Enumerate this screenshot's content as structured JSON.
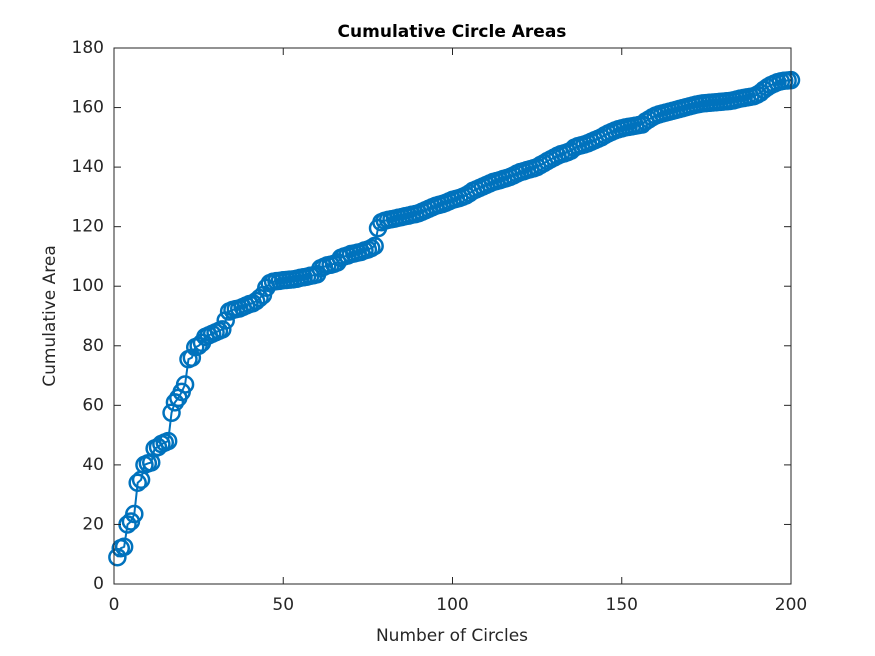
{
  "chart_data": {
    "type": "line",
    "title": "Cumulative Circle Areas",
    "x_label": "Number of Circles",
    "y_label": "Cumulative Area",
    "x": [
      1,
      2,
      3,
      4,
      5,
      6,
      7,
      8,
      9,
      10,
      11,
      12,
      13,
      14,
      15,
      16,
      17,
      18,
      19,
      20,
      21,
      22,
      23,
      24,
      25,
      26,
      27,
      28,
      29,
      30,
      31,
      32,
      33,
      34,
      35,
      36,
      37,
      38,
      39,
      40,
      41,
      42,
      43,
      44,
      45,
      46,
      47,
      48,
      49,
      50,
      51,
      52,
      53,
      54,
      55,
      56,
      57,
      58,
      59,
      60,
      61,
      62,
      63,
      64,
      65,
      66,
      67,
      68,
      69,
      70,
      71,
      72,
      73,
      74,
      75,
      76,
      77,
      78,
      79,
      80,
      81,
      82,
      83,
      84,
      85,
      86,
      87,
      88,
      89,
      90,
      91,
      92,
      93,
      94,
      95,
      96,
      97,
      98,
      99,
      100,
      101,
      102,
      103,
      104,
      105,
      106,
      107,
      108,
      109,
      110,
      111,
      112,
      113,
      114,
      115,
      116,
      117,
      118,
      119,
      120,
      121,
      122,
      123,
      124,
      125,
      126,
      127,
      128,
      129,
      130,
      131,
      132,
      133,
      134,
      135,
      136,
      137,
      138,
      139,
      140,
      141,
      142,
      143,
      144,
      145,
      146,
      147,
      148,
      149,
      150,
      151,
      152,
      153,
      154,
      155,
      156,
      157,
      158,
      159,
      160,
      161,
      162,
      163,
      164,
      165,
      166,
      167,
      168,
      169,
      170,
      171,
      172,
      173,
      174,
      175,
      176,
      177,
      178,
      179,
      180,
      181,
      182,
      183,
      184,
      185,
      186,
      187,
      188,
      189,
      190,
      191,
      192,
      193,
      194,
      195,
      196,
      197,
      198,
      199,
      200
    ],
    "series": [
      {
        "color": "#0072bd",
        "values": [
          9,
          12,
          12.5,
          20,
          21,
          23.5,
          34,
          35,
          40,
          40.5,
          40.8,
          45.5,
          46,
          47,
          47.5,
          48,
          57.5,
          61,
          62.5,
          64.5,
          67,
          75.5,
          76,
          79.5,
          80,
          81,
          83,
          83.5,
          84,
          84.5,
          85,
          85.5,
          88.5,
          91.5,
          92,
          92.3,
          92.5,
          93,
          93.5,
          94,
          94.3,
          95,
          96,
          97,
          99.5,
          101,
          101.5,
          101.7,
          101.8,
          102,
          102.1,
          102.2,
          102.3,
          102.5,
          102.8,
          103,
          103.2,
          103.5,
          103.7,
          104,
          106,
          106.5,
          107,
          107.2,
          107.5,
          108,
          109.5,
          110,
          110.3,
          110.8,
          111,
          111.3,
          111.5,
          112,
          112.3,
          112.8,
          113.5,
          119.5,
          121.5,
          122,
          122.3,
          122.5,
          122.7,
          123,
          123.2,
          123.5,
          123.7,
          124,
          124.2,
          124.5,
          125,
          125.5,
          126,
          126.5,
          127,
          127.3,
          127.6,
          128,
          128.5,
          129,
          129.3,
          129.6,
          130,
          130.5,
          131.2,
          132,
          132.5,
          133,
          133.5,
          134,
          134.5,
          135,
          135.3,
          135.6,
          136,
          136.3,
          136.7,
          137.2,
          137.8,
          138.3,
          138.6,
          139,
          139.3,
          139.6,
          140,
          140.7,
          141.3,
          142,
          142.6,
          143.2,
          143.8,
          144.3,
          144.6,
          145,
          145.5,
          146.5,
          147,
          147.3,
          147.6,
          148,
          148.5,
          149,
          149.5,
          150,
          150.7,
          151.3,
          151.8,
          152.3,
          152.7,
          153,
          153.3,
          153.5,
          153.7,
          153.9,
          154.1,
          154.3,
          155.3,
          156,
          156.7,
          157.3,
          157.7,
          158,
          158.3,
          158.6,
          158.9,
          159.2,
          159.5,
          159.8,
          160.1,
          160.4,
          160.7,
          161,
          161.2,
          161.4,
          161.5,
          161.6,
          161.7,
          161.8,
          161.9,
          162,
          162.1,
          162.2,
          162.4,
          162.7,
          163,
          163.2,
          163.4,
          163.6,
          163.8,
          164.3,
          165,
          166,
          166.8,
          167.5,
          168,
          168.5,
          168.8,
          169,
          169.1,
          169.2
        ]
      }
    ],
    "xlim": [
      0,
      200
    ],
    "xticks": [
      0,
      50,
      100,
      150,
      200
    ],
    "ylim": [
      0,
      180
    ],
    "yticks": [
      0,
      20,
      40,
      60,
      80,
      100,
      120,
      140,
      160,
      180
    ]
  }
}
